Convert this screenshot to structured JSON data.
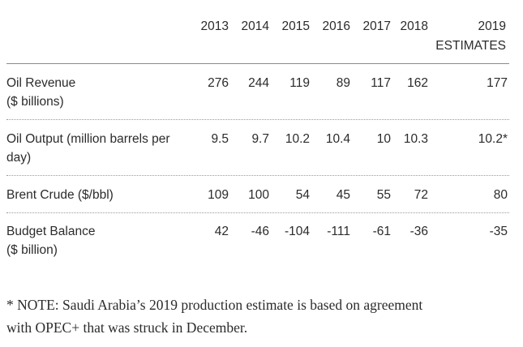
{
  "table": {
    "years": [
      "2013",
      "2014",
      "2015",
      "2016",
      "2017",
      "2018",
      "2019"
    ],
    "last_year_sublabel": "ESTIMATES",
    "rows": [
      {
        "label_line1": "Oil Revenue",
        "label_line2": "($ billions)",
        "values": [
          "276",
          "244",
          "119",
          "89",
          "117",
          "162",
          "177"
        ]
      },
      {
        "label_line1": "Oil Output (million barrels per",
        "label_line2": "day)",
        "values": [
          "9.5",
          "9.7",
          "10.2",
          "10.4",
          "10",
          "10.3",
          "10.2*"
        ]
      },
      {
        "label_line1": "Brent Crude ($/bbl)",
        "label_line2": "",
        "values": [
          "109",
          "100",
          "54",
          "45",
          "55",
          "72",
          "80"
        ]
      },
      {
        "label_line1": "Budget Balance",
        "label_line2": "($ billion)",
        "values": [
          "42",
          "-46",
          "-104",
          "-111",
          "-61",
          "-36",
          "-35"
        ]
      }
    ]
  },
  "note": {
    "line1": "* NOTE: Saudi Arabia’s 2019 production estimate is based on agreement",
    "line2": "with OPEC+ that was struck in December."
  }
}
